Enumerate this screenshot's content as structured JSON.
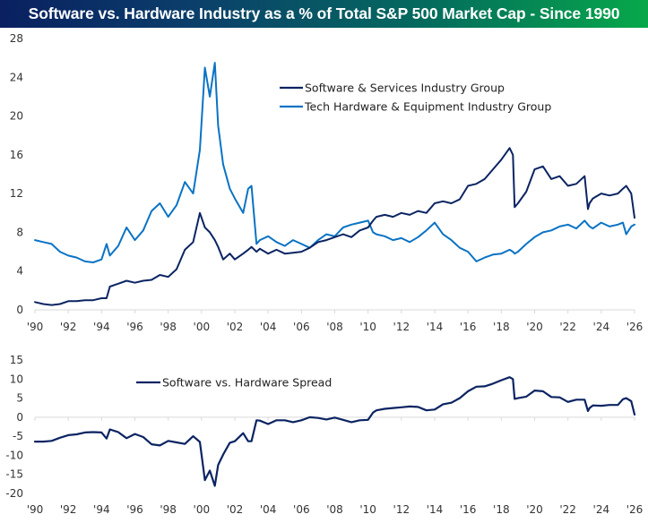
{
  "chart_data": [
    {
      "type": "line",
      "title": "Software vs. Hardware Industry as a % of Total S&P 500 Market Cap - Since 1990",
      "xlabel": "",
      "ylabel": "",
      "xlim": [
        1990,
        2026
      ],
      "ylim": [
        0,
        28
      ],
      "yticks": [
        0,
        4,
        8,
        12,
        16,
        20,
        24,
        28
      ],
      "xticks": [
        "'90",
        "'92",
        "'94",
        "'96",
        "'98",
        "'00",
        "'02",
        "'04",
        "'06",
        "'08",
        "'10",
        "'12",
        "'14",
        "'16",
        "'18",
        "'20",
        "'22",
        "'24",
        "'26"
      ],
      "grid": false,
      "legend": "top-center",
      "x": [
        1990.0,
        1990.5,
        1991.0,
        1991.5,
        1992.0,
        1992.5,
        1993.0,
        1993.5,
        1994.0,
        1994.3,
        1994.5,
        1995.0,
        1995.5,
        1996.0,
        1996.5,
        1997.0,
        1997.5,
        1998.0,
        1998.5,
        1999.0,
        1999.5,
        1999.9,
        2000.2,
        2000.5,
        2000.8,
        2001.0,
        2001.3,
        2001.7,
        2002.0,
        2002.5,
        2002.8,
        2003.0,
        2003.3,
        2003.5,
        2004.0,
        2004.5,
        2005.0,
        2005.5,
        2006.0,
        2006.5,
        2007.0,
        2007.5,
        2008.0,
        2008.5,
        2009.0,
        2009.5,
        2010.0,
        2010.3,
        2010.5,
        2011.0,
        2011.5,
        2012.0,
        2012.5,
        2013.0,
        2013.5,
        2014.0,
        2014.5,
        2015.0,
        2015.5,
        2016.0,
        2016.5,
        2017.0,
        2017.5,
        2018.0,
        2018.5,
        2018.7,
        2018.8,
        2019.0,
        2019.5,
        2020.0,
        2020.5,
        2021.0,
        2021.5,
        2022.0,
        2022.5,
        2023.0,
        2023.2,
        2023.3,
        2023.5,
        2024.0,
        2024.5,
        2025.0,
        2025.3,
        2025.5,
        2025.8,
        2026.0
      ],
      "series": [
        {
          "name": "Software & Services Industry Group",
          "color": "#0b2462",
          "values": [
            0.8,
            0.6,
            0.5,
            0.6,
            0.9,
            0.9,
            1.0,
            1.0,
            1.2,
            1.2,
            2.4,
            2.7,
            3.0,
            2.8,
            3.0,
            3.1,
            3.6,
            3.4,
            4.2,
            6.2,
            7.0,
            10.0,
            8.5,
            8.0,
            7.2,
            6.5,
            5.2,
            5.8,
            5.2,
            5.8,
            6.2,
            6.5,
            6.0,
            6.3,
            5.8,
            6.2,
            5.8,
            5.9,
            6.0,
            6.4,
            7.0,
            7.2,
            7.5,
            7.8,
            7.5,
            8.2,
            8.5,
            9.2,
            9.6,
            9.8,
            9.6,
            10.0,
            9.8,
            10.2,
            10.0,
            11.0,
            11.2,
            11.0,
            11.4,
            12.8,
            13.0,
            13.5,
            14.5,
            15.5,
            16.7,
            16.0,
            10.6,
            11.0,
            12.2,
            14.5,
            14.8,
            13.5,
            13.8,
            12.8,
            13.0,
            13.8,
            10.4,
            11.0,
            11.5,
            12.0,
            11.8,
            12.0,
            12.5,
            12.8,
            12.0,
            9.5
          ]
        },
        {
          "name": "Tech Hardware & Equipment Industry Group",
          "color": "#0a73c4",
          "values": [
            7.2,
            7.0,
            6.8,
            6.0,
            5.6,
            5.4,
            5.0,
            4.9,
            5.2,
            6.8,
            5.6,
            6.6,
            8.5,
            7.2,
            8.2,
            10.2,
            11.0,
            9.6,
            10.8,
            13.2,
            12.0,
            16.5,
            25.0,
            22.0,
            25.5,
            19.0,
            15.0,
            12.5,
            11.5,
            10.0,
            12.5,
            12.8,
            6.8,
            7.2,
            7.6,
            7.0,
            6.6,
            7.2,
            6.8,
            6.4,
            7.2,
            7.8,
            7.6,
            8.5,
            8.8,
            9.0,
            9.2,
            8.0,
            7.8,
            7.6,
            7.2,
            7.4,
            7.0,
            7.5,
            8.2,
            9.0,
            7.8,
            7.2,
            6.4,
            6.0,
            5.0,
            5.4,
            5.7,
            5.8,
            6.2,
            6.0,
            5.8,
            6.0,
            6.8,
            7.5,
            8.0,
            8.2,
            8.6,
            8.8,
            8.4,
            9.2,
            8.8,
            8.6,
            8.4,
            9.0,
            8.6,
            8.8,
            9.0,
            7.8,
            8.6,
            8.8
          ]
        }
      ]
    },
    {
      "type": "line",
      "title": "",
      "xlabel": "",
      "ylabel": "",
      "xlim": [
        1990,
        2026
      ],
      "ylim": [
        -20,
        15
      ],
      "yticks": [
        -20,
        -15,
        -10,
        -5,
        0,
        5,
        10,
        15
      ],
      "xticks": [
        "'90",
        "'92",
        "'94",
        "'96",
        "'98",
        "'00",
        "'02",
        "'04",
        "'06",
        "'08",
        "'10",
        "'12",
        "'14",
        "'16",
        "'18",
        "'20",
        "'22",
        "'24",
        "'26"
      ],
      "grid": false,
      "legend": "top-left",
      "x": [
        1990.0,
        1990.5,
        1991.0,
        1991.5,
        1992.0,
        1992.5,
        1993.0,
        1993.5,
        1994.0,
        1994.3,
        1994.5,
        1995.0,
        1995.5,
        1996.0,
        1996.5,
        1997.0,
        1997.5,
        1998.0,
        1998.5,
        1999.0,
        1999.5,
        1999.9,
        2000.2,
        2000.5,
        2000.8,
        2001.0,
        2001.3,
        2001.7,
        2002.0,
        2002.5,
        2002.8,
        2003.0,
        2003.3,
        2003.5,
        2004.0,
        2004.5,
        2005.0,
        2005.5,
        2006.0,
        2006.5,
        2007.0,
        2007.5,
        2008.0,
        2008.5,
        2009.0,
        2009.5,
        2010.0,
        2010.3,
        2010.5,
        2011.0,
        2011.5,
        2012.0,
        2012.5,
        2013.0,
        2013.5,
        2014.0,
        2014.5,
        2015.0,
        2015.5,
        2016.0,
        2016.5,
        2017.0,
        2017.5,
        2018.0,
        2018.5,
        2018.7,
        2018.8,
        2019.0,
        2019.5,
        2020.0,
        2020.5,
        2021.0,
        2021.5,
        2022.0,
        2022.5,
        2023.0,
        2023.2,
        2023.3,
        2023.5,
        2024.0,
        2024.5,
        2025.0,
        2025.3,
        2025.5,
        2025.8,
        2026.0
      ],
      "series": [
        {
          "name": "Software vs. Hardware Spread",
          "color": "#0b2462",
          "values": [
            -6.4,
            -6.4,
            -6.2,
            -5.4,
            -4.7,
            -4.5,
            -4.0,
            -3.9,
            -4.0,
            -5.6,
            -3.2,
            -3.9,
            -5.5,
            -4.4,
            -5.2,
            -7.1,
            -7.4,
            -6.2,
            -6.6,
            -7.0,
            -5.0,
            -6.5,
            -16.5,
            -14.0,
            -18.0,
            -12.5,
            -9.8,
            -6.7,
            -6.3,
            -4.2,
            -6.3,
            -6.3,
            -0.8,
            -0.9,
            -1.8,
            -0.8,
            -0.8,
            -1.3,
            -0.8,
            0.0,
            -0.2,
            -0.6,
            -0.1,
            -0.7,
            -1.3,
            -0.8,
            -0.7,
            1.2,
            1.8,
            2.2,
            2.4,
            2.6,
            2.8,
            2.7,
            1.8,
            2.0,
            3.4,
            3.8,
            5.0,
            6.8,
            8.0,
            8.1,
            8.8,
            9.7,
            10.5,
            10.0,
            4.8,
            5.0,
            5.4,
            7.0,
            6.8,
            5.3,
            5.2,
            4.0,
            4.6,
            4.6,
            1.6,
            2.4,
            3.1,
            3.0,
            3.2,
            3.2,
            4.7,
            5.0,
            4.2,
            0.7
          ]
        }
      ]
    }
  ],
  "header": {
    "title": "Software vs. Hardware Industry as a % of Total S&P 500 Market Cap - Since 1990"
  }
}
